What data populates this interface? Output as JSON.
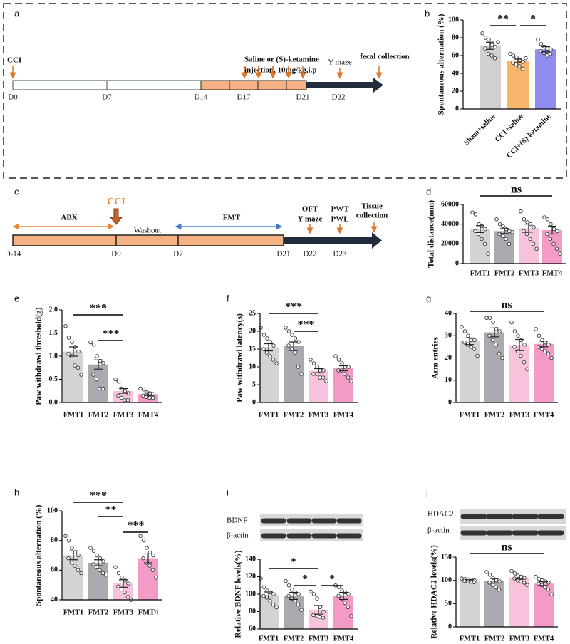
{
  "panel_labels": [
    "a",
    "b",
    "c",
    "d",
    "e",
    "f",
    "g",
    "h",
    "i",
    "j"
  ],
  "timeline_a": {
    "cci": "CCI",
    "treatment": [
      "Saline or (S)-ketamine",
      "injection, 10mg/kg,i.p"
    ],
    "ymaze": "Y maze",
    "fecal": "fecal collection",
    "days": [
      "D0",
      "D7",
      "D14",
      "D17",
      "D21",
      "D22"
    ]
  },
  "timeline_c": {
    "abx": "ABX",
    "cci": "CCI",
    "washout": "Washout",
    "fmt": "FMT",
    "events": [
      "OFT",
      "Y maze",
      "PWT",
      "PWL",
      "Tissue",
      "collection"
    ],
    "days": [
      "D-14",
      "D0",
      "D7",
      "D21",
      "D22",
      "D23"
    ]
  },
  "blot_i": [
    "BDNF",
    "β-actin"
  ],
  "blot_j": [
    "HDAC2",
    "β-actin"
  ],
  "chart_data": [
    {
      "type": "bar",
      "ylabel": "Spontaneous alternation (%)",
      "categories": [
        "Sham+saline",
        "CCI+saline",
        "CCI+(S)-ketamine"
      ],
      "colors": [
        "#d0d0d0",
        "#f9b56b",
        "#8f8cf0"
      ],
      "values": [
        71,
        54,
        67
      ],
      "errors": [
        4,
        2,
        3
      ],
      "points": [
        [
          85,
          80,
          78,
          72,
          70,
          68,
          62,
          60,
          57,
          75
        ],
        [
          62,
          60,
          58,
          55,
          53,
          52,
          50,
          48,
          45,
          57
        ],
        [
          78,
          73,
          70,
          68,
          67,
          65,
          63,
          60,
          62
        ]
      ],
      "ylim": [
        0,
        100
      ],
      "yticks": [
        0,
        20,
        40,
        60,
        80,
        100
      ],
      "annotations": [
        {
          "from": "Sham+saline",
          "to": "CCI+saline",
          "label": "**"
        },
        {
          "from": "CCI+saline",
          "to": "CCI+(S)-ketamine",
          "label": "*"
        }
      ]
    },
    {
      "type": "bar",
      "ylabel": "Total distance(mm)",
      "categories": [
        "FMT1",
        "FMT2",
        "FMT3",
        "FMT4"
      ],
      "colors": [
        "#d3d3d3",
        "#a9a9b0",
        "#f9c2dc",
        "#f39ac6"
      ],
      "values": [
        35000,
        33000,
        36000,
        34000
      ],
      "errors": [
        3500,
        2500,
        4000,
        4000
      ],
      "points": [
        [
          52000,
          50000,
          40000,
          38000,
          35000,
          33000,
          30000,
          25000,
          20000,
          10000
        ],
        [
          45000,
          40000,
          38000,
          35000,
          33000,
          30000,
          28000,
          25000,
          20000,
          32000
        ],
        [
          53000,
          45000,
          42000,
          40000,
          37000,
          33000,
          30000,
          25000,
          20000,
          15000
        ],
        [
          47000,
          45000,
          40000,
          35000,
          33000,
          30000,
          25000,
          20000,
          15000,
          10000
        ]
      ],
      "ylim": [
        0,
        60000
      ],
      "yticks": [
        0,
        20000,
        40000,
        60000
      ],
      "annotations": [
        {
          "from": "FMT1",
          "to": "FMT4",
          "label": "ns"
        }
      ]
    },
    {
      "type": "bar",
      "ylabel": "Paw withdrawl threshold(g)",
      "categories": [
        "FMT1",
        "FMT2",
        "FMT3",
        "FMT4"
      ],
      "colors": [
        "#d3d3d3",
        "#a9a9b0",
        "#f9c2dc",
        "#f39ac6"
      ],
      "values": [
        1.1,
        0.82,
        0.25,
        0.18
      ],
      "errors": [
        0.1,
        0.1,
        0.05,
        0.03
      ],
      "points": [
        [
          1.65,
          1.4,
          1.3,
          1.2,
          1.1,
          1.05,
          1.0,
          0.8,
          0.75,
          0.6
        ],
        [
          1.3,
          1.25,
          1.0,
          0.9,
          0.85,
          0.6,
          0.5,
          0.3,
          0.3
        ],
        [
          0.5,
          0.45,
          0.3,
          0.25,
          0.2,
          0.15,
          0.1,
          0.05,
          0.05
        ],
        [
          0.3,
          0.28,
          0.22,
          0.2,
          0.18,
          0.15,
          0.12,
          0.1,
          0.1
        ]
      ],
      "ylim": [
        0,
        2
      ],
      "yticks": [
        {
          "value": 0,
          "label": "0.0"
        },
        0.5,
        {
          "value": 1,
          "label": "1.0"
        },
        1.5,
        {
          "value": 2,
          "label": "2.0"
        }
      ],
      "annotations": [
        {
          "from": "FMT1",
          "to": "FMT3",
          "label": "***"
        },
        {
          "from": "FMT2",
          "to": "FMT3",
          "label": "***"
        }
      ]
    },
    {
      "type": "bar",
      "ylabel": "Paw withdrawl latency(s)",
      "categories": [
        "FMT1",
        "FMT2",
        "FMT3",
        "FMT4"
      ],
      "colors": [
        "#d3d3d3",
        "#a9a9b0",
        "#f9c2dc",
        "#f39ac6"
      ],
      "values": [
        15.5,
        15.8,
        8.9,
        9.6
      ],
      "errors": [
        1,
        1.2,
        0.6,
        0.7
      ],
      "points": [
        [
          21,
          19,
          18,
          17,
          16,
          15,
          14,
          13,
          12,
          11
        ],
        [
          21,
          20,
          19,
          18,
          17,
          16,
          15,
          14,
          10,
          8
        ],
        [
          12,
          11,
          10,
          9,
          9,
          8,
          8,
          7,
          7,
          6
        ],
        [
          13,
          12,
          11,
          10,
          10,
          9,
          9,
          8,
          7,
          6
        ]
      ],
      "ylim": [
        0,
        25
      ],
      "yticks": [
        0,
        5,
        10,
        15,
        20,
        25
      ],
      "annotations": [
        {
          "from": "FMT1",
          "to": "FMT3",
          "label": "***"
        },
        {
          "from": "FMT2",
          "to": "FMT3",
          "label": "***"
        }
      ]
    },
    {
      "type": "bar",
      "ylabel": "Arm entries",
      "categories": [
        "FMT1",
        "FMT2",
        "FMT3",
        "FMT4"
      ],
      "colors": [
        "#d3d3d3",
        "#a9a9b0",
        "#f9c2dc",
        "#f39ac6"
      ],
      "values": [
        27.5,
        31.5,
        25.8,
        26.3
      ],
      "errors": [
        1.5,
        2,
        2.5,
        1.3
      ],
      "points": [
        [
          34,
          32,
          30,
          28,
          28,
          27,
          26,
          25,
          24,
          21
        ],
        [
          38,
          38,
          36,
          33,
          32,
          30,
          28,
          26,
          22,
          20
        ],
        [
          36,
          32,
          30,
          28,
          26,
          25,
          23,
          21,
          18,
          15
        ],
        [
          33,
          30,
          28,
          27,
          26,
          25,
          24,
          23,
          22,
          20
        ]
      ],
      "ylim": [
        0,
        40
      ],
      "yticks": [
        0,
        10,
        20,
        30,
        40
      ],
      "annotations": [
        {
          "from": "FMT1",
          "to": "FMT4",
          "label": "ns"
        }
      ]
    },
    {
      "type": "bar",
      "ylabel": "Spontaneous alternation (%)",
      "categories": [
        "FMT1",
        "FMT2",
        "FMT3",
        "FMT4"
      ],
      "colors": [
        "#d3d3d3",
        "#a9a9b0",
        "#f9c2dc",
        "#f39ac6"
      ],
      "values": [
        70,
        65,
        51,
        68
      ],
      "errors": [
        3,
        2,
        2.5,
        3
      ],
      "points": [
        [
          83,
          80,
          75,
          72,
          70,
          68,
          65,
          63,
          60,
          58
        ],
        [
          75,
          73,
          70,
          68,
          66,
          64,
          62,
          60,
          58,
          57
        ],
        [
          62,
          58,
          55,
          53,
          51,
          49,
          47,
          45,
          42,
          40
        ],
        [
          83,
          80,
          75,
          72,
          70,
          68,
          65,
          63,
          60,
          55
        ]
      ],
      "ylim": [
        40,
        100
      ],
      "yticks": [
        40,
        60,
        80,
        100
      ],
      "annotations": [
        {
          "from": "FMT1",
          "to": "FMT3",
          "label": "***"
        },
        {
          "from": "FMT2",
          "to": "FMT3",
          "label": "**"
        },
        {
          "from": "FMT3",
          "to": "FMT4",
          "label": "***"
        }
      ]
    },
    {
      "type": "bar",
      "ylabel": "Relative BDNF levels(%)",
      "categories": [
        "FMT1",
        "FMT2",
        "FMT3",
        "FMT4"
      ],
      "colors": [
        "#d3d3d3",
        "#a9a9b0",
        "#f9c2dc",
        "#f39ac6"
      ],
      "values": [
        99,
        98,
        82,
        98
      ],
      "errors": [
        3.5,
        4,
        5,
        4
      ],
      "points": [
        [
          118,
          108,
          104,
          102,
          100,
          98,
          96,
          92,
          88,
          85
        ],
        [
          115,
          110,
          105,
          102,
          100,
          98,
          95,
          92,
          88,
          82
        ],
        [
          103,
          100,
          95,
          85,
          80,
          76,
          75,
          74,
          73
        ],
        [
          110,
          108,
          104,
          102,
          100,
          98,
          95,
          90,
          85,
          75
        ]
      ],
      "ylim": [
        60,
        140
      ],
      "yticks": [
        60,
        80,
        100,
        120,
        140
      ],
      "annotations": [
        {
          "from": "FMT1",
          "to": "FMT3",
          "label": "*"
        },
        {
          "from": "FMT2",
          "to": "FMT3",
          "label": "*"
        },
        {
          "from": "FMT3",
          "to": "FMT4",
          "label": "*"
        }
      ]
    },
    {
      "type": "bar",
      "ylabel": "Relative HDAC2 levels(%)",
      "categories": [
        "FMT1",
        "FMT2",
        "FMT3",
        "FMT4"
      ],
      "colors": [
        "#d3d3d3",
        "#a9a9b0",
        "#f9c2dc",
        "#f39ac6"
      ],
      "values": [
        100,
        99,
        106,
        93
      ],
      "errors": [
        1.5,
        5,
        3.5,
        4
      ],
      "points": [
        [
          104,
          103,
          102,
          101,
          100,
          99,
          98,
          97,
          96
        ],
        [
          118,
          112,
          105,
          100,
          98,
          95,
          90,
          85,
          80
        ],
        [
          120,
          115,
          110,
          108,
          105,
          104,
          100,
          98,
          95,
          90
        ],
        [
          108,
          103,
          100,
          98,
          95,
          93,
          90,
          85,
          80,
          70
        ]
      ],
      "ylim": [
        0,
        150
      ],
      "yticks": [
        0,
        50,
        100,
        150
      ],
      "annotations": [
        {
          "from": "FMT1",
          "to": "FMT4",
          "label": "ns"
        }
      ]
    }
  ]
}
